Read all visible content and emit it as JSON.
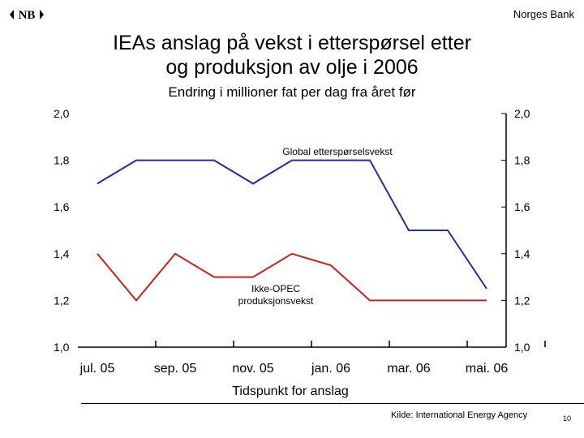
{
  "header": {
    "logo_text": "NB",
    "bank_name": "Norges Bank",
    "title_line1": "IEAs anslag på vekst i etterspørsel etter",
    "title_line2": "og produksjon av olje i 2006",
    "subtitle": "Endring i millioner fat per dag fra året før"
  },
  "chart_data": {
    "type": "line",
    "x": [
      "jul. 05",
      "aug. 05",
      "sep. 05",
      "okt. 05",
      "nov. 05",
      "des. 05",
      "jan. 06",
      "feb. 06",
      "mar. 06",
      "apr. 06",
      "mai. 06"
    ],
    "tick_labels": [
      "jul. 05",
      "sep. 05",
      "nov. 05",
      "jan. 06",
      "mar. 06",
      "mai. 06"
    ],
    "xlabel": "Tidspunkt for anslag",
    "ylim": [
      1.0,
      2.0
    ],
    "yticks": [
      "1,0",
      "1,2",
      "1,4",
      "1,6",
      "1,8",
      "2,0"
    ],
    "grid": false,
    "series": [
      {
        "name": "Global etterspørselsvekst",
        "color": "#1f2f9c",
        "values": [
          1.7,
          1.8,
          1.8,
          1.8,
          1.7,
          1.8,
          1.8,
          1.8,
          1.5,
          1.5,
          1.25
        ]
      },
      {
        "name": "Ikke-OPEC produksjonsvekst",
        "label_lines": [
          "Ikke-OPEC",
          "produksjonsvekst"
        ],
        "color": "#cc2020",
        "values": [
          1.4,
          1.2,
          1.4,
          1.3,
          1.3,
          1.4,
          1.35,
          1.2,
          1.2,
          1.2,
          1.2
        ]
      }
    ]
  },
  "footer": {
    "source": "Kilde: International Energy Agency",
    "page_number": "10"
  }
}
